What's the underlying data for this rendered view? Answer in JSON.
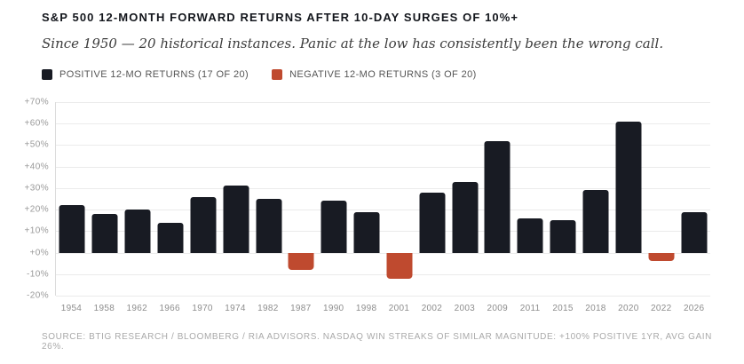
{
  "header": {
    "title": "S&P 500 12-MONTH FORWARD RETURNS AFTER 10-DAY SURGES OF 10%+",
    "subtitle": "Since 1950 — 20 historical instances. Panic at the low has consistently been the wrong call."
  },
  "legend": {
    "positive": "POSITIVE 12-MO RETURNS (17 OF 20)",
    "negative": "NEGATIVE 12-MO RETURNS (3 OF 20)"
  },
  "footer": {
    "source": "SOURCE: BTIG RESEARCH / BLOOMBERG / RIA ADVISORS. NASDAQ WIN STREAKS OF SIMILAR MAGNITUDE: +100% POSITIVE 1YR, AVG GAIN 26%."
  },
  "chart_data": {
    "type": "bar",
    "title": "S&P 500 12-MONTH FORWARD RETURNS AFTER 10-DAY SURGES OF 10%+",
    "subtitle": "Since 1950 — 20 historical instances. Panic at the low has consistently been the wrong call.",
    "categories": [
      "1954",
      "1958",
      "1962",
      "1966",
      "1970",
      "1974",
      "1982",
      "1987",
      "1990",
      "1998",
      "2001",
      "2002",
      "2003",
      "2009",
      "2011",
      "2015",
      "2018",
      "2020",
      "2022",
      "2026"
    ],
    "values": [
      22,
      18,
      20,
      14,
      26,
      31,
      25,
      -8,
      24,
      19,
      -12,
      28,
      33,
      52,
      16,
      15,
      29,
      61,
      -4,
      19
    ],
    "positive_color": "#181b23",
    "negative_color": "#bf4a2f",
    "ylim": [
      -20,
      70
    ],
    "ytick_step": 10,
    "ytick_labels": [
      "+70%",
      "+60%",
      "+50%",
      "+40%",
      "+30%",
      "+20%",
      "+10%",
      "+0%",
      "-10%",
      "-20%"
    ],
    "grid": true,
    "legend_position": "top-left",
    "xlabel": "",
    "ylabel": ""
  }
}
